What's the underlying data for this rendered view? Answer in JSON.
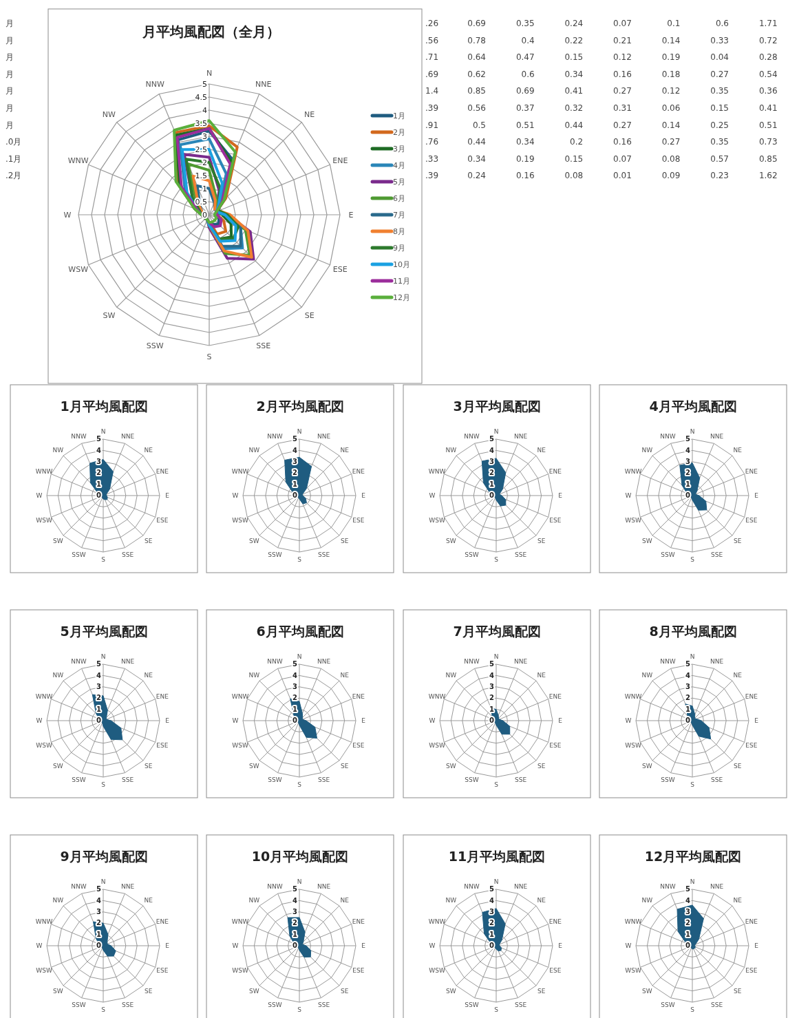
{
  "chart_data": [
    {
      "type": "radar",
      "title": "月平均風配図（全月）",
      "categories": [
        "N",
        "NNE",
        "NE",
        "ENE",
        "E",
        "ESE",
        "SE",
        "SSE",
        "S",
        "SSW",
        "SW",
        "WSW",
        "W",
        "WNW",
        "NW",
        "NNW"
      ],
      "ylim": [
        0,
        5
      ],
      "yticks": [
        0,
        0.5,
        1,
        1.5,
        2,
        2.5,
        3,
        3.5,
        4,
        4.5,
        5
      ],
      "grid": true,
      "legend": "right",
      "series": [
        {
          "name": "1月",
          "color": "#1f5c80",
          "values": [
            3.2,
            2.3,
            0.8,
            0.3,
            0.3,
            0.4,
            0.5,
            0.4,
            0.3,
            0.2,
            0.2,
            0.2,
            0.3,
            0.5,
            1.6,
            3.1
          ]
        },
        {
          "name": "2月",
          "color": "#d2691e",
          "values": [
            3.4,
            2.8,
            0.9,
            0.3,
            0.3,
            0.6,
            0.9,
            0.8,
            0.3,
            0.2,
            0.2,
            0.2,
            0.3,
            0.6,
            1.7,
            3.4
          ]
        },
        {
          "name": "3月",
          "color": "#1e6b24",
          "values": [
            3.3,
            2.2,
            0.8,
            0.3,
            0.5,
            0.9,
            1.2,
            1.0,
            0.4,
            0.2,
            0.2,
            0.2,
            0.3,
            0.6,
            1.6,
            3.3
          ]
        },
        {
          "name": "4月",
          "color": "#2a86b8",
          "values": [
            2.9,
            1.7,
            0.6,
            0.3,
            0.6,
            1.3,
            1.8,
            1.4,
            0.4,
            0.2,
            0.2,
            0.2,
            0.3,
            0.5,
            1.3,
            2.9
          ]
        },
        {
          "name": "5月",
          "color": "#7a2a8c",
          "values": [
            2.2,
            1.0,
            0.4,
            0.3,
            0.7,
            1.7,
            2.4,
            1.8,
            0.5,
            0.2,
            0.2,
            0.2,
            0.3,
            0.4,
            0.9,
            2.5
          ]
        },
        {
          "name": "6月",
          "color": "#4f9a32",
          "values": [
            1.7,
            0.7,
            0.4,
            0.3,
            0.6,
            1.5,
            2.2,
            1.6,
            0.4,
            0.2,
            0.2,
            0.2,
            0.3,
            0.4,
            0.7,
            2.1
          ]
        },
        {
          "name": "7月",
          "color": "#2a6a8c",
          "values": [
            1.0,
            0.5,
            0.3,
            0.3,
            0.6,
            1.3,
            1.7,
            1.3,
            0.4,
            0.2,
            0.2,
            0.2,
            0.3,
            0.3,
            0.5,
            1.2
          ]
        },
        {
          "name": "8月",
          "color": "#f08030",
          "values": [
            1.3,
            0.6,
            0.3,
            0.4,
            0.8,
            1.6,
            2.3,
            1.5,
            0.4,
            0.2,
            0.2,
            0.2,
            0.3,
            0.3,
            0.6,
            1.6
          ]
        },
        {
          "name": "9月",
          "color": "#2d7a2d",
          "values": [
            2.0,
            1.1,
            0.5,
            0.4,
            0.7,
            1.2,
            1.3,
            1.0,
            0.4,
            0.2,
            0.2,
            0.2,
            0.3,
            0.4,
            0.9,
            2.3
          ]
        },
        {
          "name": "10月",
          "color": "#1ba1e2",
          "values": [
            2.5,
            1.3,
            0.5,
            0.3,
            0.6,
            1.1,
            1.4,
            1.1,
            0.4,
            0.2,
            0.2,
            0.2,
            0.3,
            0.5,
            1.2,
            2.7
          ]
        },
        {
          "name": "11月",
          "color": "#9b2d9b",
          "values": [
            3.3,
            2.1,
            0.7,
            0.3,
            0.3,
            0.5,
            0.6,
            0.5,
            0.3,
            0.2,
            0.2,
            0.2,
            0.3,
            0.5,
            1.5,
            3.2
          ]
        },
        {
          "name": "12月",
          "color": "#5aaf3c",
          "values": [
            3.6,
            2.6,
            0.8,
            0.3,
            0.2,
            0.3,
            0.3,
            0.3,
            0.3,
            0.2,
            0.2,
            0.2,
            0.3,
            0.6,
            1.8,
            3.5
          ]
        }
      ]
    },
    {
      "type": "other",
      "annotations": [
        "月",
        ".26",
        "0.69",
        "0.35",
        "0.24",
        "0.07",
        "0.1",
        "0.6",
        "1.71",
        "月",
        ".56",
        "0.78",
        "0.4",
        "0.22",
        "0.21",
        "0.14",
        "0.33",
        "0.72",
        "月",
        ".71",
        "0.64",
        "0.47",
        "0.15",
        "0.12",
        "0.19",
        "0.04",
        "0.28",
        "月",
        ".69",
        "0.62",
        "0.6",
        "0.34",
        "0.16",
        "0.18",
        "0.27",
        "0.54",
        "月",
        "1.4",
        "0.85",
        "0.69",
        "0.41",
        "0.27",
        "0.12",
        "0.35",
        "0.36",
        "月",
        ".39",
        "0.56",
        "0.37",
        "0.32",
        "0.31",
        "0.06",
        "0.15",
        "0.41",
        "月",
        ".91",
        "0.5",
        "0.51",
        "0.44",
        "0.27",
        "0.14",
        "0.25",
        "0.51",
        ".0月",
        ".76",
        "0.44",
        "0.34",
        "0.2",
        "0.16",
        "0.27",
        "0.35",
        "0.73",
        ".1月",
        ".33",
        "0.34",
        "0.19",
        "0.15",
        "0.07",
        "0.08",
        "0.57",
        "0.85",
        ".2月",
        ".39",
        "0.24",
        "0.16",
        "0.08",
        "0.01",
        "0.09",
        "0.23",
        "1.62"
      ]
    },
    {
      "type": "radar",
      "title": "1月平均風配図",
      "categories": [
        "N",
        "NNE",
        "NE",
        "ENE",
        "E",
        "ESE",
        "SE",
        "SSE",
        "S",
        "SSW",
        "SW",
        "WSW",
        "W",
        "WNW",
        "NW",
        "NNW"
      ],
      "ylim": [
        0,
        5
      ],
      "yticks": [
        0,
        1,
        2,
        3,
        4,
        5
      ],
      "grid": true,
      "series": [
        {
          "type": "area",
          "color": "#1f5c80",
          "values": [
            3.2,
            2.3,
            0.8,
            0.3,
            0.3,
            0.4,
            0.5,
            0.4,
            0.3,
            0.2,
            0.2,
            0.2,
            0.3,
            0.5,
            1.6,
            3.1
          ]
        }
      ]
    },
    {
      "type": "radar",
      "title": "2月平均風配図",
      "categories": [
        "N",
        "NNE",
        "NE",
        "ENE",
        "E",
        "ESE",
        "SE",
        "SSE",
        "S",
        "SSW",
        "SW",
        "WSW",
        "W",
        "WNW",
        "NW",
        "NNW"
      ],
      "ylim": [
        0,
        5
      ],
      "yticks": [
        0,
        1,
        2,
        3,
        4,
        5
      ],
      "grid": true,
      "series": [
        {
          "type": "area",
          "color": "#1f5c80",
          "values": [
            3.4,
            2.8,
            0.9,
            0.3,
            0.3,
            0.6,
            0.9,
            0.8,
            0.3,
            0.2,
            0.2,
            0.2,
            0.3,
            0.6,
            1.7,
            3.4
          ]
        }
      ]
    },
    {
      "type": "radar",
      "title": "3月平均風配図",
      "categories": [
        "N",
        "NNE",
        "NE",
        "ENE",
        "E",
        "ESE",
        "SE",
        "SSE",
        "S",
        "SSW",
        "SW",
        "WSW",
        "W",
        "WNW",
        "NW",
        "NNW"
      ],
      "ylim": [
        0,
        5
      ],
      "yticks": [
        0,
        1,
        2,
        3,
        4,
        5
      ],
      "grid": true,
      "series": [
        {
          "type": "area",
          "color": "#1f5c80",
          "values": [
            3.3,
            2.2,
            0.8,
            0.3,
            0.5,
            0.9,
            1.2,
            1.0,
            0.4,
            0.2,
            0.2,
            0.2,
            0.3,
            0.6,
            1.6,
            3.3
          ]
        }
      ]
    },
    {
      "type": "radar",
      "title": "4月平均風配図",
      "categories": [
        "N",
        "NNE",
        "NE",
        "ENE",
        "E",
        "ESE",
        "SE",
        "SSE",
        "S",
        "SSW",
        "SW",
        "WSW",
        "W",
        "WNW",
        "NW",
        "NNW"
      ],
      "ylim": [
        0,
        5
      ],
      "yticks": [
        0,
        1,
        2,
        3,
        4,
        5
      ],
      "grid": true,
      "series": [
        {
          "type": "area",
          "color": "#1f5c80",
          "values": [
            2.9,
            1.7,
            0.6,
            0.3,
            0.6,
            1.3,
            1.8,
            1.4,
            0.4,
            0.2,
            0.2,
            0.2,
            0.3,
            0.5,
            1.3,
            2.9
          ]
        }
      ]
    },
    {
      "type": "radar",
      "title": "5月平均風配図",
      "categories": [
        "N",
        "NNE",
        "NE",
        "ENE",
        "E",
        "ESE",
        "SE",
        "SSE",
        "S",
        "SSW",
        "SW",
        "WSW",
        "W",
        "WNW",
        "NW",
        "NNW"
      ],
      "ylim": [
        0,
        5
      ],
      "yticks": [
        0,
        1,
        2,
        3,
        4,
        5
      ],
      "grid": true,
      "series": [
        {
          "type": "area",
          "color": "#1f5c80",
          "values": [
            2.2,
            1.0,
            0.4,
            0.3,
            0.7,
            1.7,
            2.4,
            1.8,
            0.5,
            0.2,
            0.2,
            0.2,
            0.3,
            0.4,
            0.9,
            2.5
          ]
        }
      ]
    },
    {
      "type": "radar",
      "title": "6月平均風配図",
      "categories": [
        "N",
        "NNE",
        "NE",
        "ENE",
        "E",
        "ESE",
        "SE",
        "SSE",
        "S",
        "SSW",
        "SW",
        "WSW",
        "W",
        "WNW",
        "NW",
        "NNW"
      ],
      "ylim": [
        0,
        5
      ],
      "yticks": [
        0,
        1,
        2,
        3,
        4,
        5
      ],
      "grid": true,
      "series": [
        {
          "type": "area",
          "color": "#1f5c80",
          "values": [
            1.7,
            0.7,
            0.4,
            0.3,
            0.6,
            1.5,
            2.2,
            1.6,
            0.4,
            0.2,
            0.2,
            0.2,
            0.3,
            0.4,
            0.7,
            2.1
          ]
        }
      ]
    },
    {
      "type": "radar",
      "title": "7月平均風配図",
      "categories": [
        "N",
        "NNE",
        "NE",
        "ENE",
        "E",
        "ESE",
        "SE",
        "SSE",
        "S",
        "SSW",
        "SW",
        "WSW",
        "W",
        "WNW",
        "NW",
        "NNW"
      ],
      "ylim": [
        0,
        5
      ],
      "yticks": [
        0,
        1,
        2,
        3,
        4,
        5
      ],
      "grid": true,
      "series": [
        {
          "type": "area",
          "color": "#1f5c80",
          "values": [
            1.0,
            0.5,
            0.3,
            0.3,
            0.6,
            1.3,
            1.7,
            1.3,
            0.4,
            0.2,
            0.2,
            0.2,
            0.3,
            0.3,
            0.5,
            1.2
          ]
        }
      ]
    },
    {
      "type": "radar",
      "title": "8月平均風配図",
      "categories": [
        "N",
        "NNE",
        "NE",
        "ENE",
        "E",
        "ESE",
        "SE",
        "SSE",
        "S",
        "SSW",
        "SW",
        "WSW",
        "W",
        "WNW",
        "NW",
        "NNW"
      ],
      "ylim": [
        0,
        5
      ],
      "yticks": [
        0,
        1,
        2,
        3,
        4,
        5
      ],
      "grid": true,
      "series": [
        {
          "type": "area",
          "color": "#1f5c80",
          "values": [
            1.3,
            0.6,
            0.3,
            0.4,
            0.8,
            1.6,
            2.3,
            1.5,
            0.4,
            0.2,
            0.2,
            0.2,
            0.3,
            0.3,
            0.6,
            1.6
          ]
        }
      ]
    },
    {
      "type": "radar",
      "title": "9月平均風配図",
      "categories": [
        "N",
        "NNE",
        "NE",
        "ENE",
        "E",
        "ESE",
        "SE",
        "SSE",
        "S",
        "SSW",
        "SW",
        "WSW",
        "W",
        "WNW",
        "NW",
        "NNW"
      ],
      "ylim": [
        0,
        5
      ],
      "yticks": [
        0,
        1,
        2,
        3,
        4,
        5
      ],
      "grid": true,
      "series": [
        {
          "type": "area",
          "color": "#1f5c80",
          "values": [
            2.0,
            1.1,
            0.5,
            0.4,
            0.7,
            1.2,
            1.3,
            1.0,
            0.4,
            0.2,
            0.2,
            0.2,
            0.3,
            0.4,
            0.9,
            2.3
          ]
        }
      ]
    },
    {
      "type": "radar",
      "title": "10月平均風配図",
      "categories": [
        "N",
        "NNE",
        "NE",
        "ENE",
        "E",
        "ESE",
        "SE",
        "SSE",
        "S",
        "SSW",
        "SW",
        "WSW",
        "W",
        "WNW",
        "NW",
        "NNW"
      ],
      "ylim": [
        0,
        5
      ],
      "yticks": [
        0,
        1,
        2,
        3,
        4,
        5
      ],
      "grid": true,
      "series": [
        {
          "type": "area",
          "color": "#1f5c80",
          "values": [
            2.5,
            1.3,
            0.5,
            0.3,
            0.6,
            1.1,
            1.4,
            1.1,
            0.4,
            0.2,
            0.2,
            0.2,
            0.3,
            0.5,
            1.2,
            2.7
          ]
        }
      ]
    },
    {
      "type": "radar",
      "title": "11月平均風配図",
      "categories": [
        "N",
        "NNE",
        "NE",
        "ENE",
        "E",
        "ESE",
        "SE",
        "SSE",
        "S",
        "SSW",
        "SW",
        "WSW",
        "W",
        "WNW",
        "NW",
        "NNW"
      ],
      "ylim": [
        0,
        5
      ],
      "yticks": [
        0,
        1,
        2,
        3,
        4,
        5
      ],
      "grid": true,
      "series": [
        {
          "type": "area",
          "color": "#1f5c80",
          "values": [
            3.3,
            2.1,
            0.7,
            0.3,
            0.3,
            0.5,
            0.6,
            0.5,
            0.3,
            0.2,
            0.2,
            0.2,
            0.3,
            0.5,
            1.5,
            3.2
          ]
        }
      ]
    },
    {
      "type": "radar",
      "title": "12月平均風配図",
      "categories": [
        "N",
        "NNE",
        "NE",
        "ENE",
        "E",
        "ESE",
        "SE",
        "SSE",
        "S",
        "SSW",
        "SW",
        "WSW",
        "W",
        "WNW",
        "NW",
        "NNW"
      ],
      "ylim": [
        0,
        5
      ],
      "yticks": [
        0,
        1,
        2,
        3,
        4,
        5
      ],
      "grid": true,
      "series": [
        {
          "type": "area",
          "color": "#1f5c80",
          "values": [
            3.6,
            2.6,
            0.8,
            0.3,
            0.2,
            0.3,
            0.3,
            0.3,
            0.3,
            0.2,
            0.2,
            0.2,
            0.3,
            0.6,
            1.8,
            3.5
          ]
        }
      ]
    }
  ]
}
